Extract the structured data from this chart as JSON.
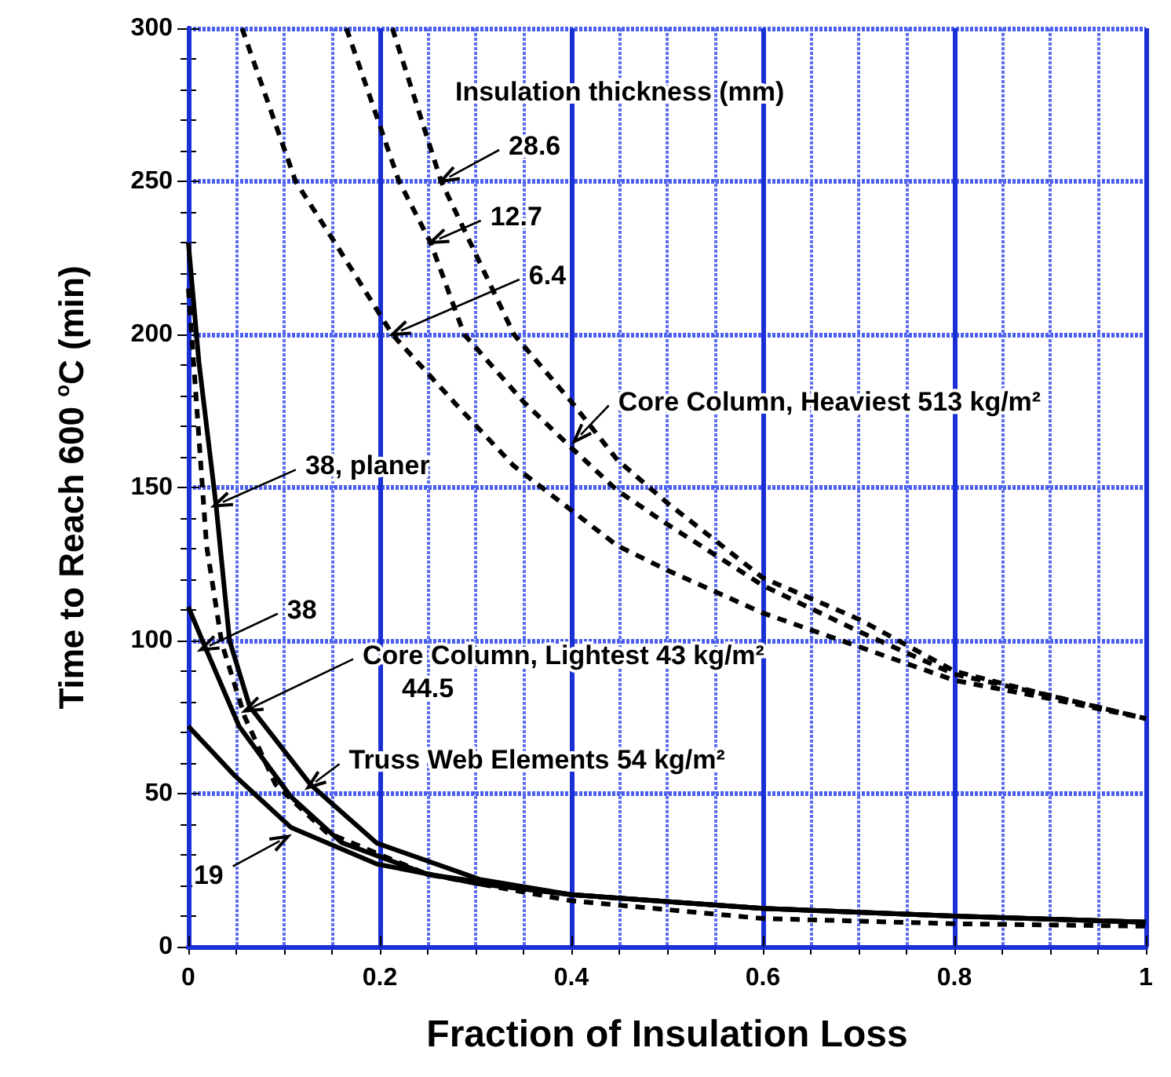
{
  "chart_data": {
    "type": "line",
    "xlabel": "Fraction of Insulation Loss",
    "ylabel": "Time to Reach 600 $^{o}$C (min)",
    "xlim": [
      0,
      1
    ],
    "xticks": [
      0,
      {
        "value": 0.05,
        "label": null
      },
      {
        "value": 0.1,
        "label": null
      },
      {
        "value": 0.15,
        "label": null
      },
      0.2,
      {
        "value": 0.25,
        "label": null
      },
      {
        "value": 0.3,
        "label": null
      },
      {
        "value": 0.35,
        "label": null
      },
      0.4,
      {
        "value": 0.45,
        "label": null
      },
      {
        "value": 0.5,
        "label": null
      },
      {
        "value": 0.55,
        "label": null
      },
      0.6,
      {
        "value": 0.65,
        "label": null
      },
      {
        "value": 0.7,
        "label": null
      },
      {
        "value": 0.75,
        "label": null
      },
      0.8,
      {
        "value": 0.85,
        "label": null
      },
      {
        "value": 0.9,
        "label": null
      },
      {
        "value": 0.95,
        "label": null
      },
      1
    ],
    "ylim": [
      0,
      300
    ],
    "yticks": [
      0,
      50,
      100,
      150,
      200,
      250,
      300
    ],
    "grid": true,
    "marker": "none",
    "series": [
      {
        "color": "#000000",
        "line_style": "dashed",
        "x": [
          0.213,
          0.264,
          0.34,
          0.4,
          0.448,
          0.5,
          0.6,
          0.7,
          0.8,
          0.9,
          1
        ],
        "values": [
          300,
          250,
          200,
          178,
          159,
          145,
          120.5,
          107,
          90,
          82,
          74.5
        ]
      },
      {
        "color": "#000000",
        "line_style": "dashed",
        "x": [
          0.165,
          0.22,
          0.253,
          0.288,
          0.35,
          0.4,
          0.448,
          0.5,
          0.6,
          0.7,
          0.8,
          0.9,
          1
        ],
        "values": [
          300,
          250,
          230,
          200,
          178,
          163,
          149,
          138,
          118,
          103,
          89,
          82,
          74.5
        ]
      },
      {
        "color": "#000000",
        "line_style": "dashed",
        "x": [
          0.056,
          0.112,
          0.155,
          0.213,
          0.28,
          0.34,
          0.448,
          0.5,
          0.6,
          0.7,
          0.8,
          0.9,
          1
        ],
        "values": [
          300,
          250,
          229,
          200,
          177,
          157,
          131,
          123,
          109,
          98,
          87,
          81,
          74.5
        ]
      },
      {
        "color": "#000000",
        "line_style": "solid",
        "x": [
          0,
          0.011,
          0.029,
          0.043,
          0.064,
          0.128,
          0.197,
          0.304,
          0.4,
          0.6,
          0.8,
          1
        ],
        "values": [
          230,
          191,
          144,
          100,
          78.5,
          52.8,
          33.8,
          22,
          17,
          12.5,
          10,
          8
        ]
      },
      {
        "color": "#000000",
        "line_style": "solid",
        "x": [
          0,
          0.016,
          0.053,
          0.107,
          0.16,
          0.25,
          0.4,
          0.6,
          0.8,
          1
        ],
        "values": [
          111,
          99,
          72,
          49,
          34,
          23.6,
          17,
          12.5,
          10,
          8
        ]
      },
      {
        "color": "#000000",
        "line_style": "dashed",
        "x": [
          0,
          0.019,
          0.035,
          0.059,
          0.091,
          0.144,
          0.25,
          0.4,
          0.6,
          0.8,
          1
        ],
        "values": [
          215,
          131,
          99,
          75,
          53,
          37.4,
          23.6,
          15,
          9.2,
          7.5,
          6.7
        ]
      },
      {
        "color": "#000000",
        "line_style": "solid",
        "x": [
          0,
          0.048,
          0.107,
          0.197,
          0.304,
          0.4,
          0.6,
          0.8,
          1
        ],
        "values": [
          72,
          56,
          39,
          27,
          20.5,
          17,
          12.5,
          10,
          8
        ]
      }
    ],
    "annotations": [
      "Insulation thickness (mm)",
      {
        "text": "28.6",
        "x": 0.264,
        "y": 250
      },
      {
        "text": "12.7",
        "x": 0.253,
        "y": 230
      },
      {
        "text": "6.4",
        "x": 0.213,
        "y": 200
      },
      {
        "text": "Core Column, Heaviest 513 kg/m²",
        "x": 0.403,
        "y": 165
      },
      {
        "text": "38, planer",
        "x": 0.027,
        "y": 144
      },
      {
        "text": "38",
        "x": 0.013,
        "y": 97
      },
      {
        "text": "Core Column, Lightest 43 kg/m²",
        "x": 0.059,
        "y": 77
      },
      "44.5",
      {
        "text": "Truss Web Elements 54 kg/m²",
        "x": 0.125,
        "y": 52
      },
      {
        "text": "19",
        "x": 0.104,
        "y": 36
      }
    ]
  }
}
